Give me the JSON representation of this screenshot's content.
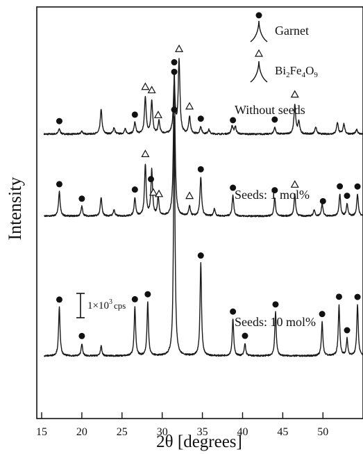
{
  "chart_data": {
    "type": "line",
    "title": "",
    "xlabel": "2θ [degrees]",
    "ylabel": "Intensity",
    "xlim": [
      15,
      55
    ],
    "xticks": [
      15,
      20,
      25,
      30,
      35,
      40,
      45,
      50
    ],
    "grid": false,
    "legend": {
      "position": "top-right",
      "entries": [
        {
          "marker": "filled-circle",
          "label": "Garnet"
        },
        {
          "marker": "open-triangle",
          "label": "Bi2Fe4O9",
          "label_parts": {
            "base1": "Bi",
            "sub1": "2",
            "base2": "Fe",
            "sub2": "4",
            "base3": "O",
            "sub3": "9"
          }
        }
      ]
    },
    "scale_bar_label": {
      "prefix": "1×10",
      "exponent": "3",
      "unit": "cps"
    },
    "series": [
      {
        "name": "Without seeds",
        "baseline_cps": 0,
        "peaks": [
          [
            17.2,
            220
          ],
          [
            20.0,
            120
          ],
          [
            22.4,
            1000
          ],
          [
            24.0,
            260
          ],
          [
            25.4,
            200
          ],
          [
            26.6,
            460
          ],
          [
            27.9,
            1500
          ],
          [
            28.7,
            1350
          ],
          [
            29.6,
            520
          ],
          [
            31.5,
            2100
          ],
          [
            32.1,
            3000
          ],
          [
            33.4,
            700
          ],
          [
            34.8,
            300
          ],
          [
            35.8,
            180
          ],
          [
            38.7,
            330
          ],
          [
            39.1,
            310
          ],
          [
            44.0,
            280
          ],
          [
            46.5,
            1200
          ],
          [
            47.0,
            500
          ],
          [
            49.1,
            300
          ],
          [
            51.8,
            480
          ],
          [
            52.6,
            420
          ],
          [
            54.2,
            200
          ]
        ],
        "garnet_markers": [
          17.2,
          26.6,
          31.5,
          34.8,
          38.8,
          44.0
        ],
        "bi2fe4o9_markers": [
          27.9,
          28.7,
          29.5,
          32.1,
          33.4,
          46.5
        ]
      },
      {
        "name": "Seeds: 1 mol%",
        "peaks": [
          [
            17.2,
            1000
          ],
          [
            20.0,
            400
          ],
          [
            22.4,
            760
          ],
          [
            24.0,
            260
          ],
          [
            26.6,
            750
          ],
          [
            27.9,
            2100
          ],
          [
            28.7,
            1900
          ],
          [
            29.5,
            760
          ],
          [
            31.5,
            6000
          ],
          [
            33.4,
            400
          ],
          [
            34.8,
            1600
          ],
          [
            36.5,
            300
          ],
          [
            38.8,
            850
          ],
          [
            44.0,
            750
          ],
          [
            46.5,
            900
          ],
          [
            48.9,
            250
          ],
          [
            49.9,
            500
          ],
          [
            52.1,
            900
          ],
          [
            53.0,
            500
          ],
          [
            54.3,
            900
          ]
        ],
        "garnet_markers": [
          17.2,
          20.0,
          26.6,
          28.6,
          31.5,
          34.8,
          38.8,
          44.0,
          50.0,
          52.1,
          53.0,
          54.3
        ],
        "bi2fe4o9_markers": [
          27.9,
          28.9,
          29.6,
          33.4,
          46.5
        ]
      },
      {
        "name": "Seeds: 10 mol%",
        "peaks": [
          [
            17.2,
            2000
          ],
          [
            20.0,
            500
          ],
          [
            22.4,
            400
          ],
          [
            26.6,
            2000
          ],
          [
            28.2,
            2200
          ],
          [
            31.5,
            9800
          ],
          [
            34.8,
            3800
          ],
          [
            38.8,
            1500
          ],
          [
            40.3,
            500
          ],
          [
            44.1,
            1800
          ],
          [
            49.9,
            1400
          ],
          [
            52.0,
            2100
          ],
          [
            53.0,
            700
          ],
          [
            54.3,
            2100
          ]
        ],
        "garnet_markers": [
          17.2,
          20.0,
          26.6,
          28.2,
          31.5,
          34.8,
          38.8,
          40.3,
          44.1,
          49.9,
          52.0,
          53.0,
          54.3
        ],
        "bi2fe4o9_markers": []
      }
    ]
  }
}
